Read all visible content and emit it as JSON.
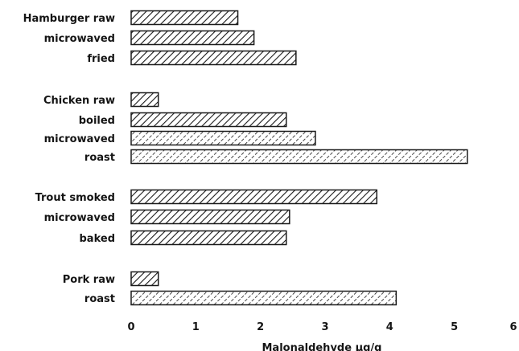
{
  "chart_data": {
    "type": "bar",
    "orientation": "horizontal",
    "categories": [
      "Hamburger raw",
      "microwaved",
      "fried",
      "Chicken raw",
      "boiled",
      "microwaved",
      "roast",
      "Trout smoked",
      "microwaved",
      "baked",
      "Pork raw",
      "roast"
    ],
    "values": [
      1.65,
      1.9,
      2.55,
      0.42,
      2.4,
      2.85,
      5.2,
      3.8,
      2.45,
      2.4,
      0.42,
      4.1
    ],
    "patterns": [
      "hatch",
      "hatch",
      "hatch",
      "hatch",
      "hatch",
      "dotted",
      "dotted",
      "hatch",
      "hatch",
      "hatch",
      "hatch",
      "dotted"
    ],
    "xlabel": "Malonaldehyde µg/g",
    "xlim": [
      0,
      6
    ],
    "xticks": [
      "0",
      "1",
      "2",
      "3",
      "4",
      "5",
      "6"
    ],
    "grid": false,
    "bar_color": "#1a1a1a"
  }
}
